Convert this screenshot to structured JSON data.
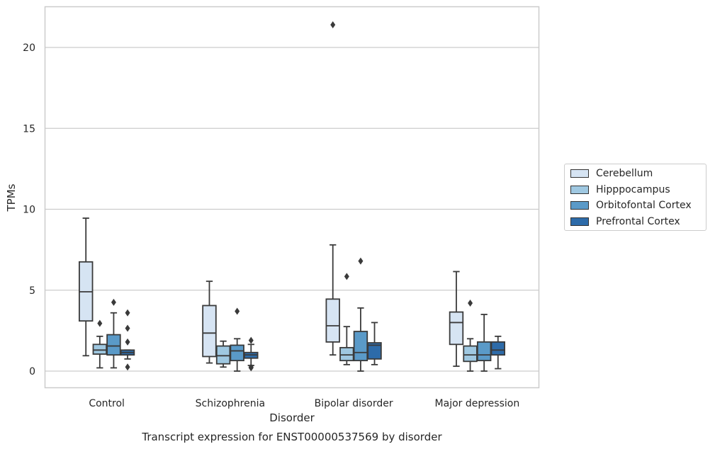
{
  "chart_data": {
    "type": "box",
    "title": "Transcript expression for ENST00000537569 by disorder",
    "xlabel": "Disorder",
    "ylabel": "TPMs",
    "ylim": [
      -1,
      22.5
    ],
    "yticks": [
      0,
      5,
      10,
      15,
      20
    ],
    "grid": "horizontal",
    "legend_position": "right",
    "categories": [
      "Control",
      "Schizophrenia",
      "Bipolar disorder",
      "Major depression"
    ],
    "series": [
      {
        "name": "Cerebellum",
        "color": "#d6e4f3",
        "boxes": [
          {
            "whisker_low": 0.95,
            "q1": 3.1,
            "median": 4.9,
            "q3": 6.75,
            "whisker_high": 9.45,
            "outliers": []
          },
          {
            "whisker_low": 0.5,
            "q1": 0.9,
            "median": 2.35,
            "q3": 4.05,
            "whisker_high": 5.55,
            "outliers": []
          },
          {
            "whisker_low": 1.0,
            "q1": 1.8,
            "median": 2.8,
            "q3": 4.45,
            "whisker_high": 7.8,
            "outliers": [
              21.4
            ]
          },
          {
            "whisker_low": 0.3,
            "q1": 1.65,
            "median": 3.0,
            "q3": 3.65,
            "whisker_high": 6.15,
            "outliers": []
          }
        ]
      },
      {
        "name": "Hipppocampus",
        "color": "#9fc8e1",
        "boxes": [
          {
            "whisker_low": 0.2,
            "q1": 1.05,
            "median": 1.3,
            "q3": 1.65,
            "whisker_high": 2.15,
            "outliers": [
              2.95
            ]
          },
          {
            "whisker_low": 0.25,
            "q1": 0.45,
            "median": 0.95,
            "q3": 1.55,
            "whisker_high": 1.85,
            "outliers": []
          },
          {
            "whisker_low": 0.4,
            "q1": 0.65,
            "median": 1.0,
            "q3": 1.45,
            "whisker_high": 2.75,
            "outliers": [
              5.85
            ]
          },
          {
            "whisker_low": 0.0,
            "q1": 0.6,
            "median": 1.0,
            "q3": 1.55,
            "whisker_high": 2.0,
            "outliers": [
              4.2
            ]
          }
        ]
      },
      {
        "name": "Orbitofontal Cortex",
        "color": "#5a9ac8",
        "boxes": [
          {
            "whisker_low": 0.2,
            "q1": 1.0,
            "median": 1.55,
            "q3": 2.25,
            "whisker_high": 3.6,
            "outliers": [
              4.25
            ]
          },
          {
            "whisker_low": 0.0,
            "q1": 0.65,
            "median": 1.25,
            "q3": 1.6,
            "whisker_high": 2.0,
            "outliers": [
              3.7
            ]
          },
          {
            "whisker_low": 0.0,
            "q1": 0.65,
            "median": 1.15,
            "q3": 2.45,
            "whisker_high": 3.9,
            "outliers": [
              6.8
            ]
          },
          {
            "whisker_low": 0.0,
            "q1": 0.65,
            "median": 1.0,
            "q3": 1.8,
            "whisker_high": 3.5,
            "outliers": []
          }
        ]
      },
      {
        "name": "Prefrontal Cortex",
        "color": "#2d6ba9",
        "boxes": [
          {
            "whisker_low": 0.75,
            "q1": 1.0,
            "median": 1.15,
            "q3": 1.3,
            "whisker_high": 1.3,
            "outliers": [
              3.6,
              2.65,
              1.8,
              0.25
            ]
          },
          {
            "whisker_low": 0.35,
            "q1": 0.8,
            "median": 1.0,
            "q3": 1.15,
            "whisker_high": 1.65,
            "outliers": [
              1.9,
              0.25,
              0.2
            ]
          },
          {
            "whisker_low": 0.4,
            "q1": 0.75,
            "median": 1.6,
            "q3": 1.75,
            "whisker_high": 3.0,
            "outliers": []
          },
          {
            "whisker_low": 0.15,
            "q1": 1.0,
            "median": 1.3,
            "q3": 1.8,
            "whisker_high": 2.15,
            "outliers": []
          }
        ]
      }
    ]
  }
}
